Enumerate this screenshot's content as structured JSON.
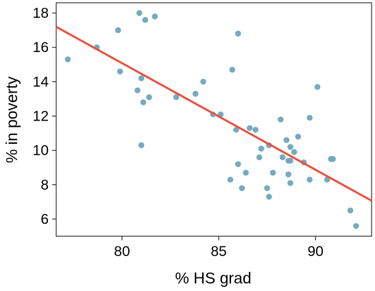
{
  "chart_data": {
    "type": "scatter",
    "xlabel": "% HS grad",
    "ylabel": "% in poverty",
    "xlim": [
      76.6,
      92.9
    ],
    "ylim": [
      5.0,
      18.6
    ],
    "xticks": [
      80,
      85,
      90
    ],
    "yticks": [
      6,
      8,
      10,
      12,
      14,
      16,
      18
    ],
    "grid": false,
    "series": [
      {
        "points": [
          [
            77.2,
            15.3
          ],
          [
            78.7,
            16.0
          ],
          [
            79.8,
            17.0
          ],
          [
            79.9,
            14.6
          ],
          [
            80.8,
            13.5
          ],
          [
            80.9,
            18.0
          ],
          [
            81.0,
            14.2
          ],
          [
            81.0,
            10.3
          ],
          [
            81.1,
            12.8
          ],
          [
            81.2,
            17.6
          ],
          [
            81.4,
            13.1
          ],
          [
            81.7,
            17.8
          ],
          [
            82.8,
            13.1
          ],
          [
            83.8,
            13.3
          ],
          [
            84.2,
            14.0
          ],
          [
            84.7,
            12.1
          ],
          [
            85.1,
            12.1
          ],
          [
            85.6,
            8.3
          ],
          [
            85.7,
            14.7
          ],
          [
            85.9,
            11.2
          ],
          [
            86.0,
            9.2
          ],
          [
            86.0,
            16.8
          ],
          [
            86.2,
            7.8
          ],
          [
            86.4,
            8.7
          ],
          [
            86.6,
            11.3
          ],
          [
            86.9,
            11.2
          ],
          [
            87.1,
            9.6
          ],
          [
            87.2,
            10.1
          ],
          [
            87.5,
            7.8
          ],
          [
            87.6,
            7.3
          ],
          [
            87.6,
            10.3
          ],
          [
            87.8,
            8.7
          ],
          [
            88.2,
            11.8
          ],
          [
            88.3,
            9.6
          ],
          [
            88.5,
            10.6
          ],
          [
            88.6,
            8.6
          ],
          [
            88.6,
            9.4
          ],
          [
            88.7,
            10.2
          ],
          [
            88.7,
            8.1
          ],
          [
            88.7,
            9.4
          ],
          [
            88.9,
            9.9
          ],
          [
            89.1,
            10.8
          ],
          [
            89.4,
            9.3
          ],
          [
            89.7,
            8.3
          ],
          [
            89.7,
            11.9
          ],
          [
            90.1,
            13.7
          ],
          [
            90.6,
            8.3
          ],
          [
            90.8,
            9.5
          ],
          [
            90.9,
            9.5
          ],
          [
            91.8,
            6.5
          ],
          [
            92.1,
            5.6
          ]
        ],
        "color": "#6fa5bd"
      }
    ],
    "regression_line": {
      "intercept": 64.78,
      "slope": -0.6212,
      "color": "#e8513e"
    }
  }
}
